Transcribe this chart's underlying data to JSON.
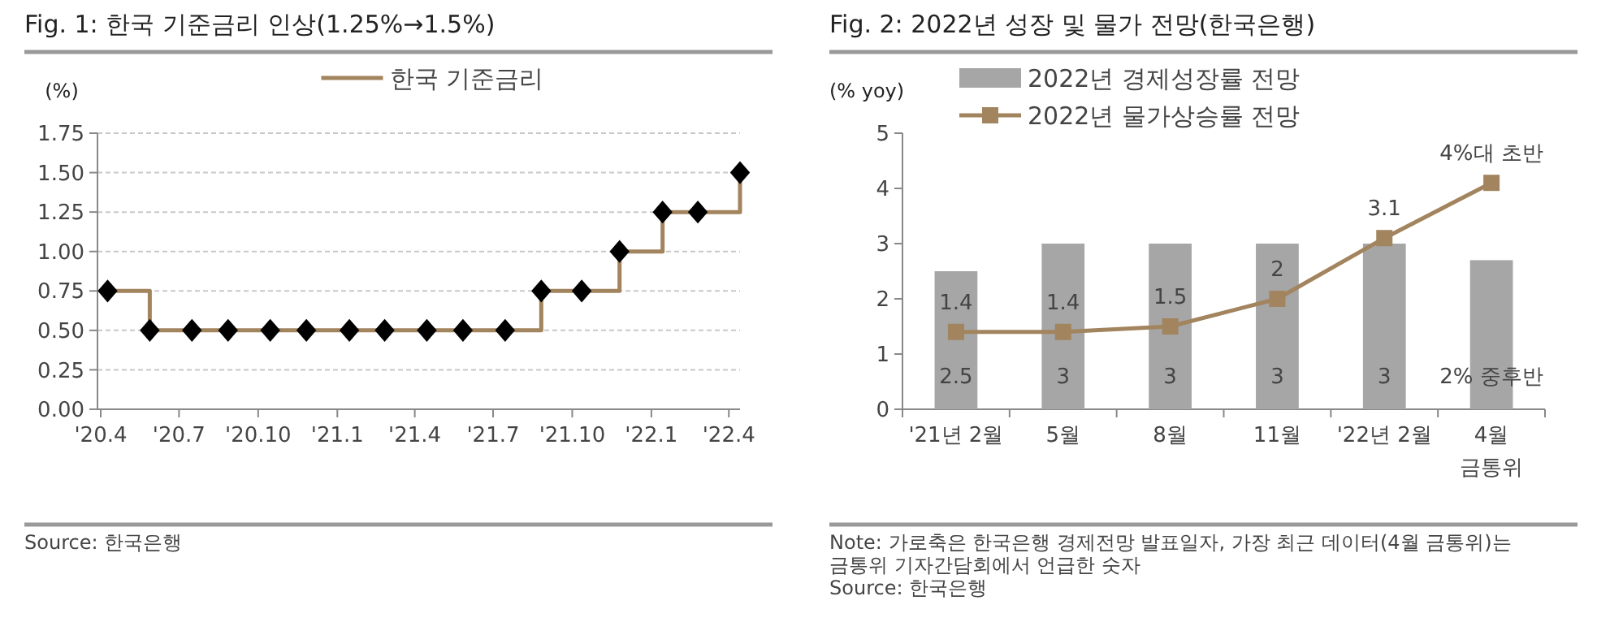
{
  "chart_data": [
    {
      "type": "step",
      "title": "Fig. 1:  한국 기준금리 인상(1.25%→1.5%)",
      "ylabel": "(%)",
      "x": [
        "2020-04-09",
        "2020-05-28",
        "2020-07-16",
        "2020-08-27",
        "2020-10-15",
        "2020-11-26",
        "2021-01-15",
        "2021-02-25",
        "2021-04-15",
        "2021-05-27",
        "2021-07-15",
        "2021-08-26",
        "2021-10-12",
        "2021-11-25",
        "2022-01-14",
        "2022-02-24",
        "2022-04-14"
      ],
      "series": [
        {
          "name": "한국 기준금리",
          "color": "#a2845e",
          "values": [
            0.75,
            0.5,
            0.5,
            0.5,
            0.5,
            0.5,
            0.5,
            0.5,
            0.5,
            0.5,
            0.5,
            0.75,
            0.75,
            1.0,
            1.25,
            1.25,
            1.5
          ]
        }
      ],
      "marker": "diamond",
      "xlim": [
        "2020-04-01",
        "2022-04-14"
      ],
      "xticks": [
        {
          "value": "2020-04-01",
          "label": "'20.4"
        },
        {
          "value": "2020-07-01",
          "label": "'20.7"
        },
        {
          "value": "2020-10-01",
          "label": "'20.10"
        },
        {
          "value": "2021-01-01",
          "label": "'21.1"
        },
        {
          "value": "2021-04-01",
          "label": "'21.4"
        },
        {
          "value": "2021-07-01",
          "label": "'21.7"
        },
        {
          "value": "2021-10-01",
          "label": "'21.10"
        },
        {
          "value": "2022-01-01",
          "label": "'22.1"
        },
        {
          "value": "2022-04-01",
          "label": "'22.4"
        }
      ],
      "ylim": [
        0,
        1.75
      ],
      "yticks": [
        {
          "value": 0,
          "label": "0.00"
        },
        {
          "value": 0.25,
          "label": "0.25"
        },
        {
          "value": 0.5,
          "label": "0.50"
        },
        {
          "value": 0.75,
          "label": "0.75"
        },
        {
          "value": 1,
          "label": "1.00"
        },
        {
          "value": 1.25,
          "label": "1.25"
        },
        {
          "value": 1.5,
          "label": "1.50"
        },
        {
          "value": 1.75,
          "label": "1.75"
        }
      ],
      "grid": "y",
      "legend": "top",
      "line_style": "solid",
      "annotations": [
        "Source: 한국은행"
      ]
    },
    {
      "type": "bar",
      "title": "Fig. 2:  2022년 성장 및 물가 전망(한국은행)",
      "ylabel": "(% yoy)",
      "categories": [
        "'21년 2월",
        "5월",
        "8월",
        "11월",
        "'22년 2월",
        "4월\n금통위"
      ],
      "series": [
        {
          "name": "2022년 경제성장률 전망",
          "color": "#a6a6a6",
          "values": [
            2.5,
            3,
            3,
            3,
            3,
            2.7
          ],
          "value_labels": [
            "2.5",
            "3",
            "3",
            "3",
            "3",
            null
          ]
        },
        {
          "name": "2022년 물가상승률 전망",
          "type": "line",
          "color": "#a2845e",
          "marker": "square",
          "values": [
            1.4,
            1.4,
            1.5,
            2,
            3.1,
            4.1
          ],
          "value_labels": [
            "1.4",
            "1.4",
            "1.5",
            "2",
            "3.1",
            "4%대 초반"
          ]
        }
      ],
      "ylim": [
        0,
        5
      ],
      "yticks": [
        0,
        1,
        2,
        3,
        4,
        5
      ],
      "grid": false,
      "legend": "top left",
      "annotations": [
        "2% 중후반",
        "Note: 가로축은 한국은행 경제전망 발표일자, 가장 최근 데이터(4월 금통위)는 금통위 기자간담회에서 언급한 숫자",
        "Source: 한국은행"
      ]
    }
  ]
}
